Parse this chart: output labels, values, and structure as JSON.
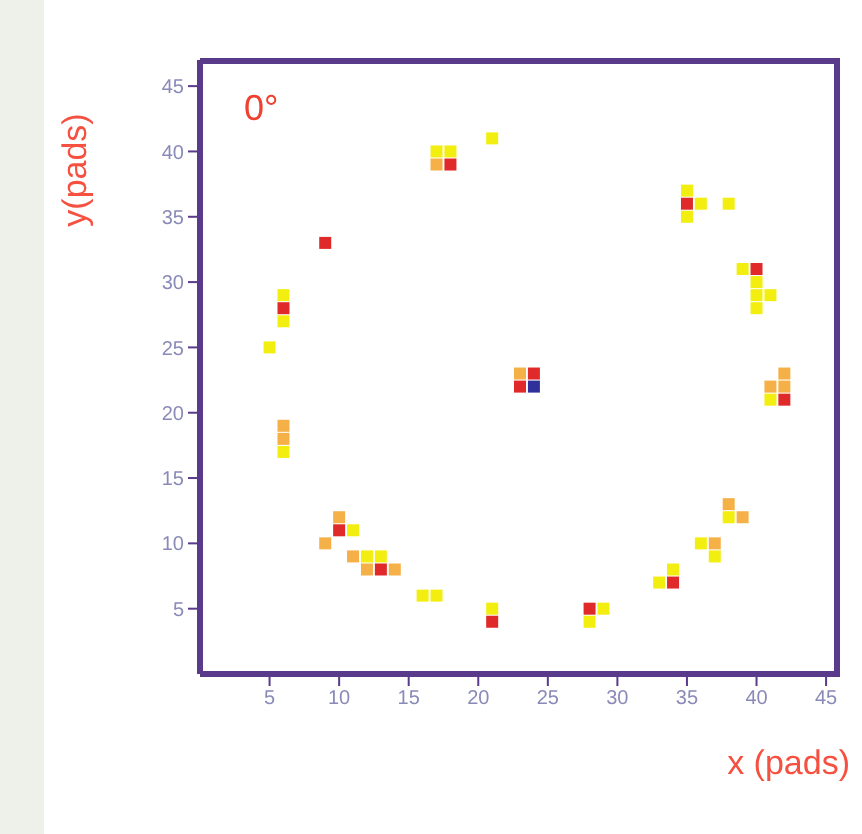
{
  "chart_data": {
    "type": "scatter",
    "title": "0°",
    "xlabel": "x (pads)",
    "ylabel": "y(pads)",
    "marker": "square",
    "grid": false,
    "legend": false,
    "xlim": [
      0,
      46
    ],
    "ylim": [
      0,
      47
    ],
    "xticks": [
      5,
      10,
      15,
      20,
      25,
      30,
      35,
      40,
      45
    ],
    "yticks": [
      5,
      10,
      15,
      20,
      25,
      30,
      35,
      40,
      45
    ],
    "series": [
      {
        "color": "#f2ee10",
        "x": [
          5,
          6,
          6,
          17,
          18,
          21,
          35,
          36,
          38,
          35,
          39,
          40,
          40,
          41,
          40,
          6,
          11,
          12,
          13,
          16,
          17,
          21,
          41,
          38,
          36,
          37,
          34,
          33,
          29,
          28
        ],
        "values": [
          25,
          29,
          27,
          40,
          40,
          41,
          37,
          36,
          36,
          35,
          31,
          30,
          29,
          29,
          28,
          17,
          11,
          9,
          9,
          6,
          6,
          5,
          21,
          12,
          10,
          9,
          8,
          7,
          5,
          4
        ]
      },
      {
        "color": "#f5b048",
        "x": [
          17,
          6,
          6,
          9,
          10,
          11,
          12,
          14,
          23,
          42,
          41,
          42,
          38,
          39,
          37
        ],
        "values": [
          39,
          19,
          18,
          10,
          12,
          9,
          8,
          8,
          23,
          23,
          22,
          22,
          13,
          12,
          10
        ]
      },
      {
        "color": "#e02a2a",
        "x": [
          6,
          9,
          18,
          35,
          40,
          10,
          13,
          21,
          24,
          23,
          42,
          34,
          28
        ],
        "values": [
          28,
          33,
          39,
          36,
          31,
          11,
          8,
          4,
          23,
          22,
          21,
          7,
          5
        ]
      },
      {
        "color": "#30309a",
        "x": [
          24
        ],
        "values": [
          22
        ]
      }
    ]
  }
}
